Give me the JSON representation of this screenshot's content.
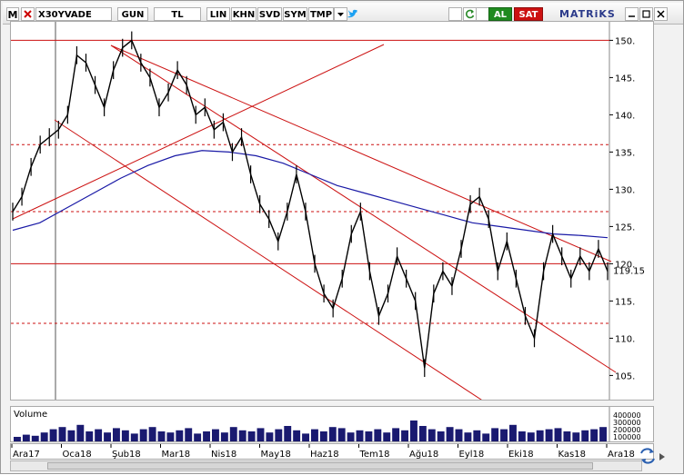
{
  "toolbar": {
    "m_button": "M",
    "symbol": "X30YVADE",
    "period": "GUN",
    "currency": "TL",
    "scale": "LIN",
    "buttons": [
      "KHN",
      "SVD",
      "SYM",
      "TMP"
    ],
    "buy_label": "AL",
    "sell_label": "SAT",
    "brand": "MATRiKS",
    "colors": {
      "buy": "#1f8a1f",
      "sell": "#cc1111",
      "twitter": "#1da1f2"
    }
  },
  "price_axis": {
    "ticks": [
      "150.",
      "145.",
      "140.",
      "135.",
      "130.",
      "125.",
      "120.",
      "115.",
      "110.",
      "105."
    ],
    "last_price": "119.15"
  },
  "volume_panel": {
    "label": "Volume",
    "axis_labels": [
      "400000",
      "300000",
      "200000",
      "100000"
    ]
  },
  "time_axis": {
    "labels": [
      "Ara17",
      "Oca18",
      "Şub18",
      "Mar18",
      "Nis18",
      "May18",
      "Haz18",
      "Tem18",
      "Ağu18",
      "Eyl18",
      "Eki18",
      "Kas18",
      "Ara18"
    ]
  },
  "chart_data": {
    "type": "line",
    "series": [
      {
        "values": [
          127,
          129,
          133,
          136,
          137,
          138,
          140,
          148,
          147,
          144,
          141,
          146,
          149,
          150,
          147,
          145,
          141,
          143,
          146,
          144,
          140,
          141,
          138,
          139,
          135,
          137,
          132,
          128,
          126,
          123,
          127,
          132,
          127,
          120,
          116,
          114,
          118,
          124,
          127,
          119,
          113,
          116,
          121,
          118,
          115,
          106,
          116,
          119,
          117,
          122,
          128,
          129,
          126,
          119,
          123,
          118,
          113,
          110,
          119,
          124,
          121,
          118,
          121,
          119,
          122,
          119
        ]
      },
      {
        "values": [
          124.5,
          125.5,
          127.5,
          129.5,
          131.5,
          133.2,
          134.5,
          135.2,
          135.0,
          134.5,
          133.5,
          132.0,
          130.5,
          129.5,
          128.5,
          127.5,
          126.5,
          125.5,
          125.0,
          124.5,
          124.0,
          123.8,
          123.5
        ]
      }
    ],
    "horizontal_levels": [
      150,
      136,
      127,
      120,
      112
    ],
    "ylim": [
      102,
      152
    ],
    "grid": false,
    "colors": {
      "price": "#000000",
      "moving_average": "#1a1aa6",
      "levels": "#cc1111",
      "trendlines": "#cc1111"
    },
    "volume_values": [
      5,
      7,
      6,
      9,
      12,
      14,
      11,
      16,
      10,
      12,
      9,
      13,
      11,
      8,
      12,
      14,
      10,
      9,
      11,
      13,
      8,
      10,
      12,
      9,
      14,
      11,
      10,
      13,
      9,
      12,
      15,
      11,
      8,
      12,
      10,
      14,
      13,
      9,
      11,
      10,
      12,
      9,
      13,
      11,
      20,
      15,
      12,
      10,
      14,
      12,
      9,
      11,
      8,
      13,
      12,
      16,
      10,
      9,
      11,
      12,
      13,
      10,
      9,
      11,
      12,
      14
    ]
  }
}
